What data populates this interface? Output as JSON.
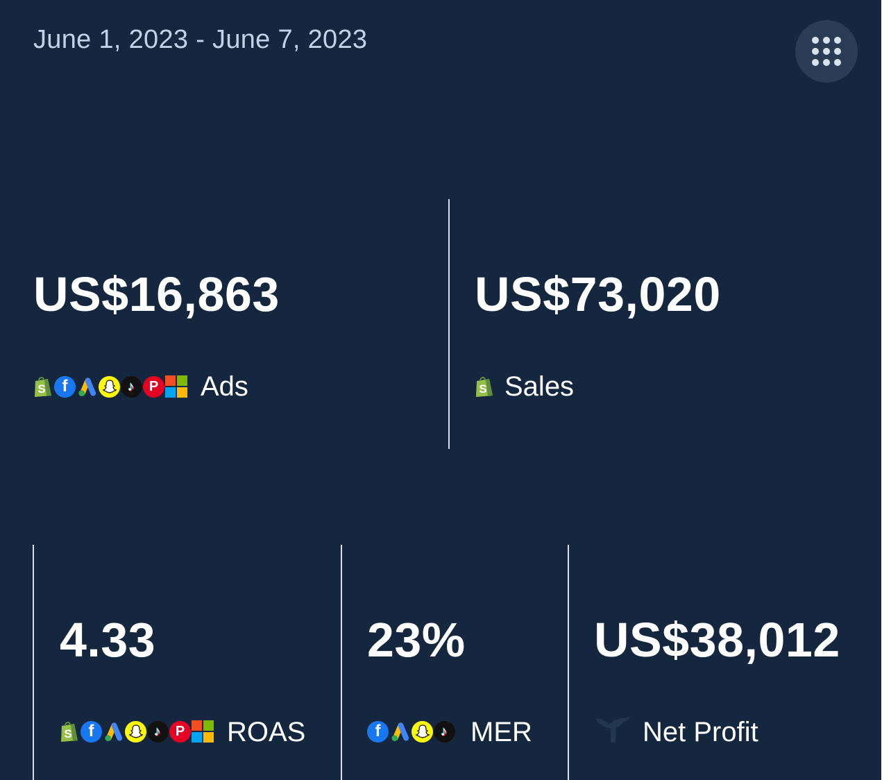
{
  "header": {
    "date_range": "June 1, 2023 - June 7, 2023",
    "menu_icon": "grid-dots-icon"
  },
  "metrics": {
    "ads": {
      "value": "US$16,863",
      "label": "Ads",
      "sources": [
        "shopify-icon",
        "facebook-icon",
        "google-ads-icon",
        "snapchat-icon",
        "tiktok-icon",
        "pinterest-icon",
        "microsoft-icon"
      ]
    },
    "sales": {
      "value": "US$73,020",
      "label": "Sales",
      "sources": [
        "shopify-icon"
      ]
    },
    "roas": {
      "value": "4.33",
      "label": "ROAS",
      "sources": [
        "shopify-icon",
        "facebook-icon",
        "google-ads-icon",
        "snapchat-icon",
        "tiktok-icon",
        "pinterest-icon",
        "microsoft-icon"
      ]
    },
    "mer": {
      "value": "23%",
      "label": "MER",
      "sources": [
        "facebook-icon",
        "google-ads-icon",
        "snapchat-icon",
        "tiktok-icon"
      ]
    },
    "net_profit": {
      "value": "US$38,012",
      "label": "Net Profit",
      "sources": [
        "triple-whale-icon"
      ]
    }
  },
  "colors": {
    "background": "#15273e",
    "date_text": "#c3d2e6",
    "divider": "#d7dee8",
    "menu_button": "#2a3d55"
  }
}
